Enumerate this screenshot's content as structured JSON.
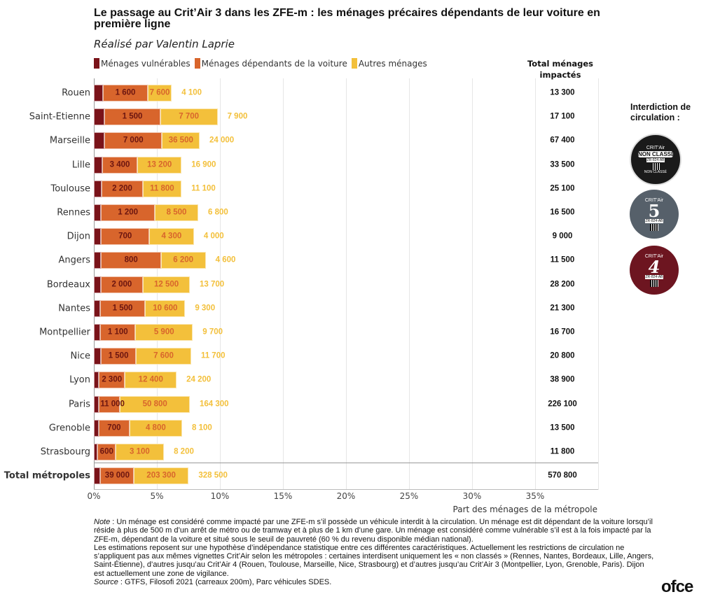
{
  "title": "Le passage au Crit’Air 3 dans les ZFE-m : les ménages précaires dépendants de leur voiture en première ligne",
  "subtitle": "Réalisé par Valentin Laprie",
  "legend": [
    "Ménages vulnérables",
    "Ménages dépendants de la voiture",
    "Autres ménages"
  ],
  "total_header": "Total ménages impactés",
  "colors": {
    "vulnerable": "#7a1319",
    "dependent": "#d8652c",
    "other": "#f3c03b",
    "label_dark": "#6b1510",
    "label_mid": "#d8652c",
    "label_other": "#f3c03b"
  },
  "chart_data": {
    "type": "bar",
    "orientation": "horizontal-stacked",
    "xlabel": "Part des ménages de la métropole",
    "xlim": [
      0,
      40
    ],
    "xticks": [
      "0%",
      "5%",
      "10%",
      "15%",
      "20%",
      "25%",
      "30%",
      "35%"
    ],
    "grid": true,
    "categories": [
      "Rouen",
      "Saint-Etienne",
      "Marseille",
      "Lille",
      "Toulouse",
      "Rennes",
      "Dijon",
      "Angers",
      "Bordeaux",
      "Nantes",
      "Montpellier",
      "Nice",
      "Lyon",
      "Paris",
      "Grenoble",
      "Strasbourg",
      "Total métropoles"
    ],
    "series": [
      {
        "name": "Ménages vulnérables",
        "share_pct": [
          0.74,
          0.85,
          0.85,
          0.69,
          0.63,
          0.57,
          0.57,
          0.57,
          0.56,
          0.5,
          0.52,
          0.56,
          0.41,
          0.41,
          0.37,
          0.3,
          0.52
        ],
        "labels": [
          "1 600",
          "1 500",
          "7 000",
          "3 400",
          "2 200",
          "1 200",
          "700",
          "800",
          "2 000",
          "1 500",
          "1 100",
          "1 500",
          "2 300",
          "11 000",
          "700",
          "600",
          "39 000"
        ]
      },
      {
        "name": "Ménages dépendants de la voiture",
        "share_pct": [
          3.54,
          4.43,
          4.56,
          2.75,
          3.26,
          4.28,
          3.82,
          4.76,
          3.33,
          3.57,
          2.78,
          2.79,
          2.05,
          1.66,
          2.46,
          1.42,
          2.66
        ],
        "labels": [
          "7 600",
          "7 700",
          "36 500",
          "13 200",
          "11 800",
          "8 500",
          "4 300",
          "6 200",
          "12 500",
          "10 600",
          "5 900",
          "7 600",
          "12 400",
          "50 800",
          "4 800",
          "3 100",
          "203 300"
        ]
      },
      {
        "name": "Autres ménages",
        "share_pct": [
          1.9,
          4.53,
          2.98,
          3.52,
          3.07,
          3.43,
          3.55,
          3.54,
          3.72,
          3.17,
          4.55,
          4.37,
          4.1,
          5.54,
          4.17,
          3.84,
          4.34
        ],
        "labels": [
          "4 100",
          "7 900",
          "24 000",
          "16 900",
          "11 100",
          "6 800",
          "4 000",
          "4 600",
          "13 700",
          "9 300",
          "9 700",
          "11 700",
          "24 200",
          "164 300",
          "8 100",
          "8 200",
          "328 500"
        ]
      }
    ],
    "totals": [
      "13 300",
      "17 100",
      "67 400",
      "33 500",
      "25 100",
      "16 500",
      "9 000",
      "11 500",
      "28 200",
      "21 300",
      "16 700",
      "20 800",
      "38 900",
      "226 100",
      "13 500",
      "11 800",
      "570 800"
    ]
  },
  "side_panel": {
    "heading": "Interdiction de circulation :",
    "badges": [
      {
        "top": "CRIT'Air",
        "main": "NON CLASSÉ",
        "plate": "ZR-824-AB",
        "bottom": "NON CLASSÉ",
        "color": "#1a1a1a"
      },
      {
        "top": "CRIT'Air",
        "main": "5",
        "plate": "ZR-824-AB",
        "color": "#56606a"
      },
      {
        "top": "CRIT'Air",
        "main": "4",
        "plate": "ZR-824-AB",
        "color": "#6d1520"
      }
    ]
  },
  "notes": {
    "note_label": "Note",
    "note_text": " : Un ménage est considéré comme impacté par une ZFE-m s’il possède un véhicule interdit à la circulation. Un ménage est dit dépendant de la voiture lorsqu’il réside à plus de 500 m d’un arrêt de métro ou de tramway et à plus de 1 km d’une gare. Un ménage est considéré comme vulnérable s’il est à la fois impacté par la ZFE-m, dépendant de la voiture et situé sous le seuil de pauvreté (60 % du revenu disponible médian national).",
    "estimates_text": "Les estimations reposent sur une hypothèse d’indépendance statistique entre ces différentes caractéristiques. Actuellement les restrictions de circulation ne s’appliquent pas aux mêmes vignettes Crit’Air selon les métropoles : certaines interdisent uniquement les « non classés » (Rennes, Nantes, Bordeaux, Lille, Angers, Saint-Étienne), d’autres jusqu’au Crit’Air 4 (Rouen, Toulouse, Marseille, Nice, Strasbourg) et d’autres jusqu’au Crit’Air 3 (Montpellier, Lyon, Grenoble, Paris). Dijon est actuellement une zone de vigilance.",
    "source_label": "Source",
    "source_text": " : GTFS, Filosofi 2021 (carreaux 200m), Parc véhicules SDES."
  },
  "logo": "ofce"
}
